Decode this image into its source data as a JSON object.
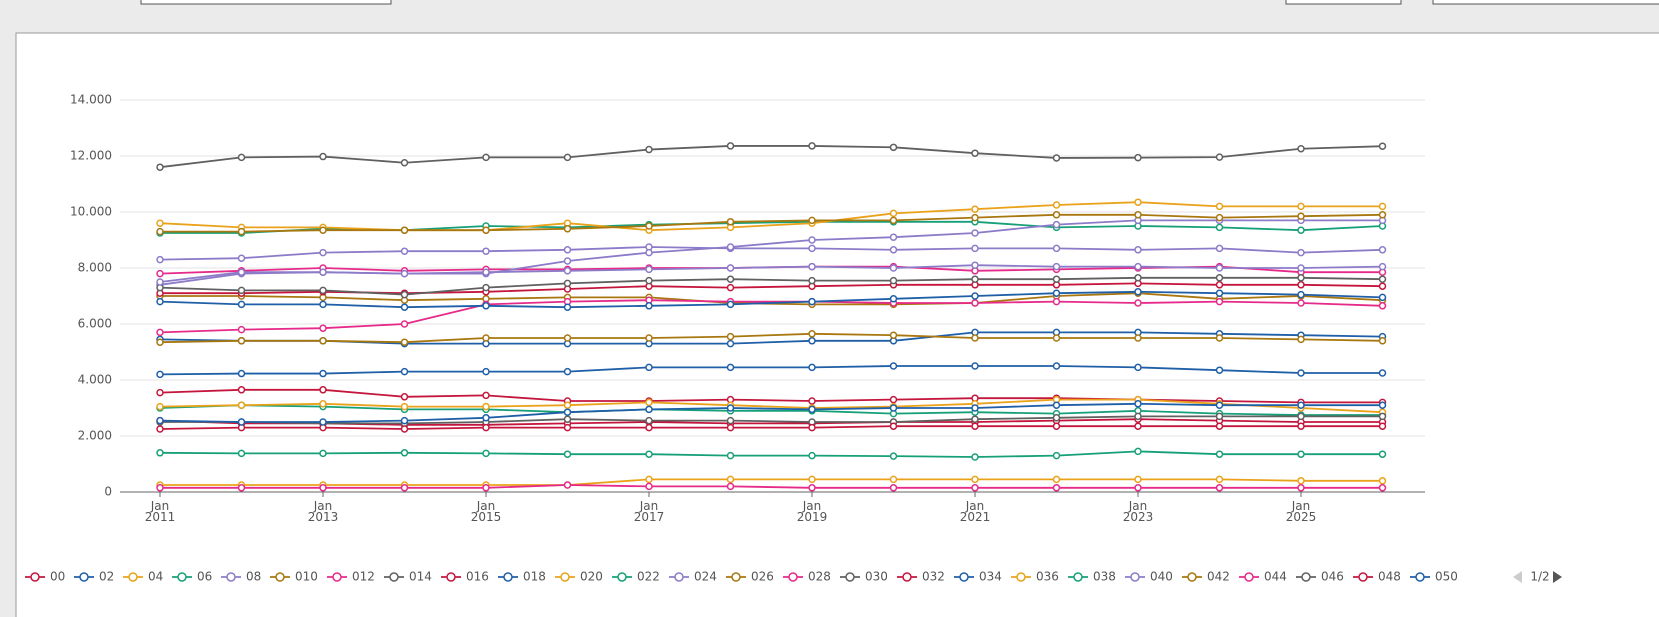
{
  "chart_data": {
    "type": "line",
    "x": [
      "2011-01",
      "2012-01",
      "2013-01",
      "2014-01",
      "2015-01",
      "2016-01",
      "2017-01",
      "2018-01",
      "2019-01",
      "2020-01",
      "2021-01",
      "2022-01",
      "2023-01",
      "2024-01",
      "2025-01",
      "2026-01"
    ],
    "xticks": [
      {
        "value": "2011-01",
        "label": "Jan 2011"
      },
      {
        "value": "2013-01",
        "label": "Jan 2013"
      },
      {
        "value": "2015-01",
        "label": "Jan 2015"
      },
      {
        "value": "2017-01",
        "label": "Jan 2017"
      },
      {
        "value": "2019-01",
        "label": "Jan 2019"
      },
      {
        "value": "2021-01",
        "label": "Jan 2021"
      },
      {
        "value": "2023-01",
        "label": "Jan 2023"
      },
      {
        "value": "2025-01",
        "label": "Jan 2025"
      }
    ],
    "ylim": [
      0,
      14000
    ],
    "yticks": [
      0,
      {
        "value": 2000,
        "label": "2.000"
      },
      {
        "value": 4000,
        "label": "4.000"
      },
      {
        "value": 6000,
        "label": "6.000"
      },
      {
        "value": 8000,
        "label": "8.000"
      },
      {
        "value": 10000,
        "label": "10.000"
      },
      {
        "value": 12000,
        "label": "12.000"
      },
      {
        "value": 14000,
        "label": "14.000"
      }
    ],
    "grid": true,
    "legend_page": "1/2",
    "series": [
      {
        "name": "00",
        "color": "#c4163c",
        "values": [
          2550,
          2450,
          2450,
          2400,
          2400,
          2450,
          2500,
          2450,
          2450,
          2500,
          2500,
          2550,
          2600,
          2550,
          2500,
          2500
        ]
      },
      {
        "name": "02",
        "color": "#1f5fa8",
        "values": [
          4200,
          4230,
          4230,
          4300,
          4300,
          4300,
          4450,
          4450,
          4450,
          4500,
          4500,
          4500,
          4450,
          4350,
          4250,
          4250
        ]
      },
      {
        "name": "04",
        "color": "#e9a21a",
        "values": [
          250,
          250,
          250,
          250,
          250,
          250,
          450,
          450,
          450,
          450,
          450,
          450,
          450,
          450,
          400,
          400
        ]
      },
      {
        "name": "06",
        "color": "#17a078",
        "values": [
          9250,
          9250,
          9400,
          9350,
          9500,
          9450,
          9550,
          9600,
          9650,
          9650,
          9650,
          9450,
          9500,
          9450,
          9350,
          9500
        ]
      },
      {
        "name": "08",
        "color": "#8c7bc8",
        "values": [
          8300,
          8350,
          8550,
          8600,
          8600,
          8650,
          8750,
          8700,
          8700,
          8650,
          8700,
          8700,
          8650,
          8700,
          8550,
          8650
        ]
      },
      {
        "name": "010",
        "color": "#a8770f",
        "values": [
          7000,
          7000,
          6950,
          6850,
          6900,
          6950,
          6950,
          6750,
          6700,
          6700,
          6750,
          7000,
          7100,
          6900,
          7000,
          6850
        ]
      },
      {
        "name": "012",
        "color": "#e62a8a",
        "values": [
          7800,
          7900,
          8000,
          7900,
          7950,
          7950,
          8000,
          8000,
          8050,
          8050,
          7900,
          7950,
          8000,
          8050,
          7850,
          7850
        ]
      },
      {
        "name": "014",
        "color": "#606060",
        "values": [
          11600,
          11950,
          11980,
          11760,
          11950,
          11950,
          12230,
          12360,
          12360,
          12310,
          12100,
          11930,
          11940,
          11960,
          12260,
          12350
        ]
      },
      {
        "name": "016",
        "color": "#c4163c",
        "values": [
          7100,
          7100,
          7150,
          7100,
          7150,
          7250,
          7350,
          7300,
          7350,
          7400,
          7400,
          7400,
          7450,
          7400,
          7400,
          7350
        ]
      },
      {
        "name": "018",
        "color": "#1f5fa8",
        "values": [
          5450,
          5400,
          5400,
          5300,
          5300,
          5300,
          5300,
          5300,
          5400,
          5400,
          5700,
          5700,
          5700,
          5650,
          5600,
          5550
        ]
      },
      {
        "name": "020",
        "color": "#e9a21a",
        "values": [
          9600,
          9450,
          9450,
          9350,
          9350,
          9600,
          9350,
          9450,
          9600,
          9950,
          10100,
          10250,
          10350,
          10200,
          10200,
          10200
        ]
      },
      {
        "name": "022",
        "color": "#17a078",
        "values": [
          3000,
          3100,
          3050,
          2950,
          2950,
          2850,
          2950,
          2900,
          2900,
          2800,
          2850,
          2800,
          2900,
          2800,
          2750,
          2750
        ]
      },
      {
        "name": "024",
        "color": "#8c7bc8",
        "values": [
          7400,
          7800,
          7850,
          7800,
          7800,
          8250,
          8550,
          8750,
          9000,
          9100,
          9250,
          9550,
          9700,
          9700,
          9700,
          9700
        ]
      },
      {
        "name": "026",
        "color": "#a8770f",
        "values": [
          9300,
          9300,
          9350,
          9350,
          9350,
          9400,
          9500,
          9650,
          9700,
          9700,
          9800,
          9900,
          9900,
          9800,
          9850,
          9900
        ]
      },
      {
        "name": "028",
        "color": "#e62a8a",
        "values": [
          5700,
          5800,
          5850,
          6000,
          6700,
          6800,
          6850,
          6800,
          6800,
          6750,
          6750,
          6800,
          6750,
          6800,
          6750,
          6650
        ]
      },
      {
        "name": "030",
        "color": "#606060",
        "values": [
          7300,
          7200,
          7200,
          7050,
          7300,
          7450,
          7550,
          7600,
          7550,
          7550,
          7600,
          7600,
          7650,
          7650,
          7650,
          7600
        ]
      },
      {
        "name": "032",
        "color": "#c4163c",
        "values": [
          3550,
          3650,
          3650,
          3400,
          3450,
          3250,
          3250,
          3300,
          3250,
          3300,
          3350,
          3350,
          3300,
          3250,
          3200,
          3200
        ]
      },
      {
        "name": "034",
        "color": "#1f5fa8",
        "values": [
          6800,
          6700,
          6700,
          6600,
          6650,
          6600,
          6650,
          6700,
          6800,
          6900,
          7000,
          7100,
          7150,
          7100,
          7050,
          6950
        ]
      },
      {
        "name": "036",
        "color": "#e9a21a",
        "values": [
          3050,
          3100,
          3150,
          3050,
          3050,
          3100,
          3200,
          3100,
          3000,
          3050,
          3150,
          3300,
          3300,
          3150,
          3000,
          2850
        ]
      },
      {
        "name": "038",
        "color": "#17a078",
        "values": [
          1400,
          1380,
          1380,
          1400,
          1380,
          1350,
          1350,
          1300,
          1300,
          1280,
          1250,
          1300,
          1450,
          1350,
          1350,
          1350
        ]
      },
      {
        "name": "040",
        "color": "#8c7bc8",
        "values": [
          7500,
          7850,
          7850,
          7800,
          7850,
          7900,
          7950,
          8000,
          8050,
          8000,
          8100,
          8050,
          8050,
          8000,
          8000,
          8050
        ]
      },
      {
        "name": "042",
        "color": "#a8770f",
        "values": [
          5350,
          5400,
          5400,
          5350,
          5500,
          5500,
          5500,
          5550,
          5650,
          5600,
          5500,
          5500,
          5500,
          5500,
          5450,
          5400
        ]
      },
      {
        "name": "044",
        "color": "#e62a8a",
        "values": [
          150,
          150,
          150,
          150,
          150,
          250,
          200,
          200,
          150,
          150,
          150,
          150,
          150,
          150,
          150,
          150
        ]
      },
      {
        "name": "046",
        "color": "#606060",
        "values": [
          2500,
          2500,
          2450,
          2450,
          2500,
          2600,
          2550,
          2550,
          2500,
          2500,
          2600,
          2650,
          2700,
          2700,
          2700,
          2700
        ]
      },
      {
        "name": "048",
        "color": "#c4163c",
        "values": [
          2250,
          2300,
          2300,
          2250,
          2300,
          2300,
          2300,
          2300,
          2300,
          2350,
          2350,
          2350,
          2350,
          2350,
          2350,
          2350
        ]
      },
      {
        "name": "050",
        "color": "#1f5fa8",
        "values": [
          2550,
          2500,
          2500,
          2550,
          2650,
          2850,
          2950,
          3000,
          2950,
          3000,
          3000,
          3100,
          3150,
          3100,
          3100,
          3100
        ]
      }
    ]
  }
}
